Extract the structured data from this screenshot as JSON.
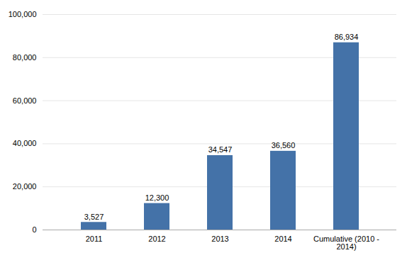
{
  "chart_data": {
    "type": "bar",
    "categories": [
      "2011",
      "2012",
      "2013",
      "2014",
      "Cumulative (2010 -\n2014)"
    ],
    "values": [
      3527,
      12300,
      34547,
      36560,
      86934
    ],
    "value_labels": [
      "3,527",
      "12,300",
      "34,547",
      "36,560",
      "86,934"
    ],
    "data_labels": true,
    "color": "#4472a8",
    "ylim": [
      0,
      100000
    ],
    "yticks": [
      0,
      {
        "value": 20000,
        "label": "20,000"
      },
      {
        "value": 40000,
        "label": "40,000"
      },
      {
        "value": 60000,
        "label": "60,000"
      },
      {
        "value": 80000,
        "label": "80,000"
      },
      {
        "value": 100000,
        "label": "100,000"
      }
    ],
    "grid": true
  }
}
